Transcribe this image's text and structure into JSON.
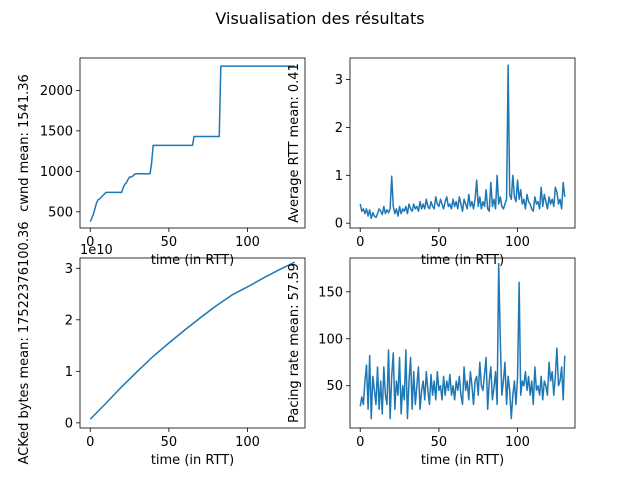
{
  "figure": {
    "title": "Visualisation des résultats",
    "line_color": "#1f77b4"
  },
  "chart_data": [
    {
      "type": "line",
      "title": "",
      "xlabel": "time (in RTT)",
      "ylabel": "cwnd mean: 1541.36",
      "xlim": [
        -6.5,
        136.5
      ],
      "ylim": [
        300,
        2400
      ],
      "xticks": [
        0,
        50,
        100
      ],
      "yticks": [
        500,
        1000,
        1500,
        2000
      ],
      "grid": false,
      "series": [
        {
          "x": [
            0,
            1,
            2,
            3,
            4,
            5,
            6,
            7,
            8,
            9,
            10,
            11,
            12,
            13,
            14,
            15,
            16,
            17,
            18,
            19,
            20,
            21,
            22,
            23,
            24,
            25,
            26,
            27,
            28,
            29,
            30,
            31,
            32,
            33,
            34,
            35,
            36,
            37,
            38,
            39,
            40,
            45,
            50,
            55,
            60,
            65,
            66,
            70,
            75,
            80,
            82,
            83,
            90,
            100,
            110,
            120,
            130
          ],
          "y": [
            380,
            420,
            470,
            540,
            610,
            650,
            660,
            680,
            700,
            720,
            740,
            740,
            740,
            740,
            740,
            740,
            740,
            740,
            740,
            740,
            740,
            800,
            840,
            860,
            900,
            930,
            930,
            940,
            960,
            970,
            970,
            970,
            970,
            970,
            970,
            970,
            970,
            970,
            970,
            1100,
            1320,
            1320,
            1320,
            1320,
            1320,
            1320,
            1430,
            1430,
            1430,
            1430,
            1430,
            2300,
            2300,
            2300,
            2300,
            2300,
            2300
          ]
        }
      ]
    },
    {
      "type": "line",
      "title": "",
      "xlabel": "time (in RTT)",
      "ylabel": "Average RTT mean: 0.41",
      "xlim": [
        -6.5,
        136.5
      ],
      "ylim": [
        -0.1,
        3.45
      ],
      "xticks": [
        0,
        50,
        100
      ],
      "yticks": [
        0,
        1,
        2,
        3
      ],
      "grid": false,
      "series": [
        {
          "x": [
            0,
            1,
            2,
            3,
            4,
            5,
            6,
            7,
            8,
            9,
            10,
            11,
            12,
            13,
            14,
            15,
            16,
            17,
            18,
            19,
            20,
            21,
            22,
            23,
            24,
            25,
            26,
            27,
            28,
            29,
            30,
            31,
            32,
            33,
            34,
            35,
            36,
            37,
            38,
            39,
            40,
            41,
            42,
            43,
            44,
            45,
            46,
            47,
            48,
            49,
            50,
            51,
            52,
            53,
            54,
            55,
            56,
            57,
            58,
            59,
            60,
            61,
            62,
            63,
            64,
            65,
            66,
            67,
            68,
            69,
            70,
            71,
            72,
            73,
            74,
            75,
            76,
            77,
            78,
            79,
            80,
            81,
            82,
            83,
            84,
            85,
            86,
            87,
            88,
            89,
            90,
            91,
            92,
            93,
            94,
            95,
            96,
            97,
            98,
            99,
            100,
            101,
            102,
            103,
            104,
            105,
            106,
            107,
            108,
            109,
            110,
            111,
            112,
            113,
            114,
            115,
            116,
            117,
            118,
            119,
            120,
            121,
            122,
            123,
            124,
            125,
            126,
            127,
            128,
            129,
            130
          ],
          "y": [
            0.4,
            0.25,
            0.3,
            0.2,
            0.3,
            0.15,
            0.28,
            0.1,
            0.22,
            0.15,
            0.12,
            0.2,
            0.3,
            0.25,
            0.18,
            0.35,
            0.2,
            0.28,
            0.22,
            0.3,
            0.98,
            0.35,
            0.2,
            0.3,
            0.15,
            0.35,
            0.2,
            0.3,
            0.25,
            0.35,
            0.2,
            0.4,
            0.3,
            0.25,
            0.4,
            0.3,
            0.35,
            0.25,
            0.45,
            0.3,
            0.4,
            0.3,
            0.5,
            0.35,
            0.3,
            0.45,
            0.35,
            0.3,
            0.55,
            0.4,
            0.35,
            0.5,
            0.4,
            0.3,
            0.45,
            0.55,
            0.35,
            0.4,
            0.3,
            0.5,
            0.35,
            0.45,
            0.3,
            0.55,
            0.4,
            0.25,
            0.5,
            0.4,
            0.3,
            0.6,
            0.35,
            0.45,
            0.3,
            0.5,
            0.9,
            0.35,
            0.55,
            0.3,
            0.45,
            0.35,
            0.7,
            0.3,
            0.25,
            0.85,
            0.35,
            0.5,
            0.3,
            1.0,
            0.4,
            0.55,
            0.35,
            0.3,
            0.4,
            0.5,
            3.3,
            0.6,
            0.5,
            1.0,
            0.55,
            0.45,
            0.9,
            0.5,
            0.7,
            0.4,
            0.5,
            0.3,
            0.6,
            0.45,
            0.4,
            0.3,
            0.25,
            0.55,
            0.4,
            0.45,
            0.3,
            0.75,
            0.35,
            0.6,
            0.45,
            0.3,
            0.55,
            0.4,
            0.5,
            0.35,
            0.75,
            0.65,
            0.4,
            0.5,
            0.3,
            0.85,
            0.55
          ]
        }
      ]
    },
    {
      "type": "line",
      "title": "",
      "xlabel": "time (in RTT)",
      "ylabel": "ACKed bytes mean: 17522376100.36",
      "offset_text": "1e10",
      "xlim": [
        -6.5,
        136.5
      ],
      "ylim": [
        -0.1,
        3.2
      ],
      "xticks": [
        0,
        50,
        100
      ],
      "yticks": [
        0,
        1,
        2,
        3
      ],
      "grid": false,
      "series": [
        {
          "x": [
            0,
            10,
            20,
            30,
            40,
            50,
            60,
            70,
            80,
            90,
            100,
            110,
            120,
            130
          ],
          "y": [
            0.07,
            0.38,
            0.7,
            1.0,
            1.29,
            1.55,
            1.8,
            2.04,
            2.27,
            2.48,
            2.64,
            2.81,
            2.97,
            3.12
          ]
        }
      ]
    },
    {
      "type": "line",
      "title": "",
      "xlabel": "time (in RTT)",
      "ylabel": "Pacing rate mean: 57.59",
      "xlim": [
        -6.5,
        136.5
      ],
      "ylim": [
        5,
        186
      ],
      "xticks": [
        0,
        50,
        100
      ],
      "yticks": [
        50,
        100,
        150
      ],
      "grid": false,
      "series": [
        {
          "x": [
            0,
            1,
            2,
            3,
            4,
            5,
            6,
            7,
            8,
            9,
            10,
            11,
            12,
            13,
            14,
            15,
            16,
            17,
            18,
            19,
            20,
            21,
            22,
            23,
            24,
            25,
            26,
            27,
            28,
            29,
            30,
            31,
            32,
            33,
            34,
            35,
            36,
            37,
            38,
            39,
            40,
            41,
            42,
            43,
            44,
            45,
            46,
            47,
            48,
            49,
            50,
            51,
            52,
            53,
            54,
            55,
            56,
            57,
            58,
            59,
            60,
            61,
            62,
            63,
            64,
            65,
            66,
            67,
            68,
            69,
            70,
            71,
            72,
            73,
            74,
            75,
            76,
            77,
            78,
            79,
            80,
            81,
            82,
            83,
            84,
            85,
            86,
            87,
            88,
            89,
            90,
            91,
            92,
            93,
            94,
            95,
            96,
            97,
            98,
            99,
            100,
            101,
            102,
            103,
            104,
            105,
            106,
            107,
            108,
            109,
            110,
            111,
            112,
            113,
            114,
            115,
            116,
            117,
            118,
            119,
            120,
            121,
            122,
            123,
            124,
            125,
            126,
            127,
            128,
            129,
            130
          ],
          "y": [
            28,
            38,
            30,
            55,
            72,
            25,
            82,
            15,
            60,
            45,
            30,
            70,
            25,
            55,
            20,
            70,
            40,
            30,
            88,
            15,
            60,
            85,
            25,
            55,
            40,
            80,
            20,
            50,
            35,
            88,
            15,
            55,
            80,
            25,
            65,
            30,
            50,
            70,
            25,
            45,
            55,
            35,
            65,
            45,
            30,
            62,
            40,
            55,
            35,
            65,
            45,
            50,
            35,
            60,
            40,
            55,
            45,
            62,
            40,
            50,
            35,
            55,
            45,
            60,
            40,
            30,
            70,
            45,
            55,
            35,
            65,
            50,
            30,
            55,
            60,
            40,
            75,
            50,
            45,
            62,
            80,
            25,
            55,
            70,
            35,
            48,
            65,
            30,
            180,
            100,
            40,
            55,
            75,
            30,
            60,
            45,
            15,
            40,
            55,
            30,
            60,
            160,
            40,
            55,
            50,
            65,
            45,
            60,
            40,
            55,
            30,
            70,
            45,
            50,
            40,
            60,
            35,
            55,
            50,
            40,
            75,
            55,
            65,
            40,
            60,
            90,
            50,
            55,
            70,
            35,
            82
          ]
        }
      ]
    }
  ]
}
